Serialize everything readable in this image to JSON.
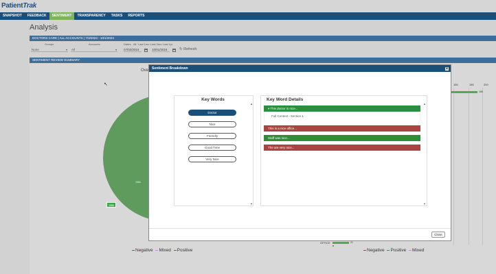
{
  "app": {
    "logo_text": "Patient",
    "logo_accent": "Trak"
  },
  "nav": [
    {
      "label": "SNAPSHOT"
    },
    {
      "label": "FEEDBACK"
    },
    {
      "label": "SENTIMENT"
    },
    {
      "label": "TRANSPARENCY"
    },
    {
      "label": "TASKS"
    },
    {
      "label": "REPORTS"
    }
  ],
  "page": {
    "title": "Analysis",
    "context_bar": "DOCTORS CARE | ALL ACCOUNTS | 7/3/2024 - 10/1/2024",
    "summary_bar": "SENTIMENT REVIEW SUMMARY"
  },
  "filters": {
    "groups_label": "Groups",
    "groups_value": "None",
    "accounts_label": "Accounts",
    "accounts_value": "All",
    "dates_label": "Dates",
    "quick_ranges": [
      "All",
      "Last 1mo",
      "Last 3mo",
      "Last 1yr"
    ],
    "start_date": "07/03/2024",
    "end_date": "10/01/2024",
    "refresh_label": "Refresh"
  },
  "background_chart": {
    "partial_title": "Ove",
    "pie_inner_label": "1586",
    "pie_tag": "1586",
    "left_legend": [
      "Negative",
      "Mixed",
      "Positive"
    ],
    "right_legend": [
      "Negative",
      "Positive",
      "Mixed"
    ],
    "right_axis_ticks": [
      "150",
      "180",
      "200"
    ],
    "right_bar_value": "166",
    "office_label": "OFFICE",
    "office_value": "21"
  },
  "colors": {
    "nav_bg": "#1a4f7a",
    "nav_active": "#7cb55c",
    "positive": "#2c8e3b",
    "negative": "#a94442",
    "mixed": "#e0a030"
  },
  "modal": {
    "title": "Sentiment Breakdown",
    "close_x": "✕",
    "keywords_title": "Key Words",
    "keywords": [
      {
        "label": "Doctor",
        "active": true
      },
      {
        "label": "Nice",
        "active": false
      },
      {
        "label": "Friendly",
        "active": false
      },
      {
        "label": "Good Time",
        "active": false
      },
      {
        "label": "Very Nice",
        "active": false
      }
    ],
    "details_title": "Key Word Details",
    "details": [
      {
        "text": "▾ This doctor is nice...",
        "sentiment": "positive"
      },
      {
        "text": "Full Context - Section 1",
        "sentiment": "subrow"
      },
      {
        "text": "This is a nice office...",
        "sentiment": "negative"
      },
      {
        "text": "Staff was nice...",
        "sentiment": "positive"
      },
      {
        "text": "The are very nice...",
        "sentiment": "negative"
      }
    ],
    "close_button": "Close"
  }
}
